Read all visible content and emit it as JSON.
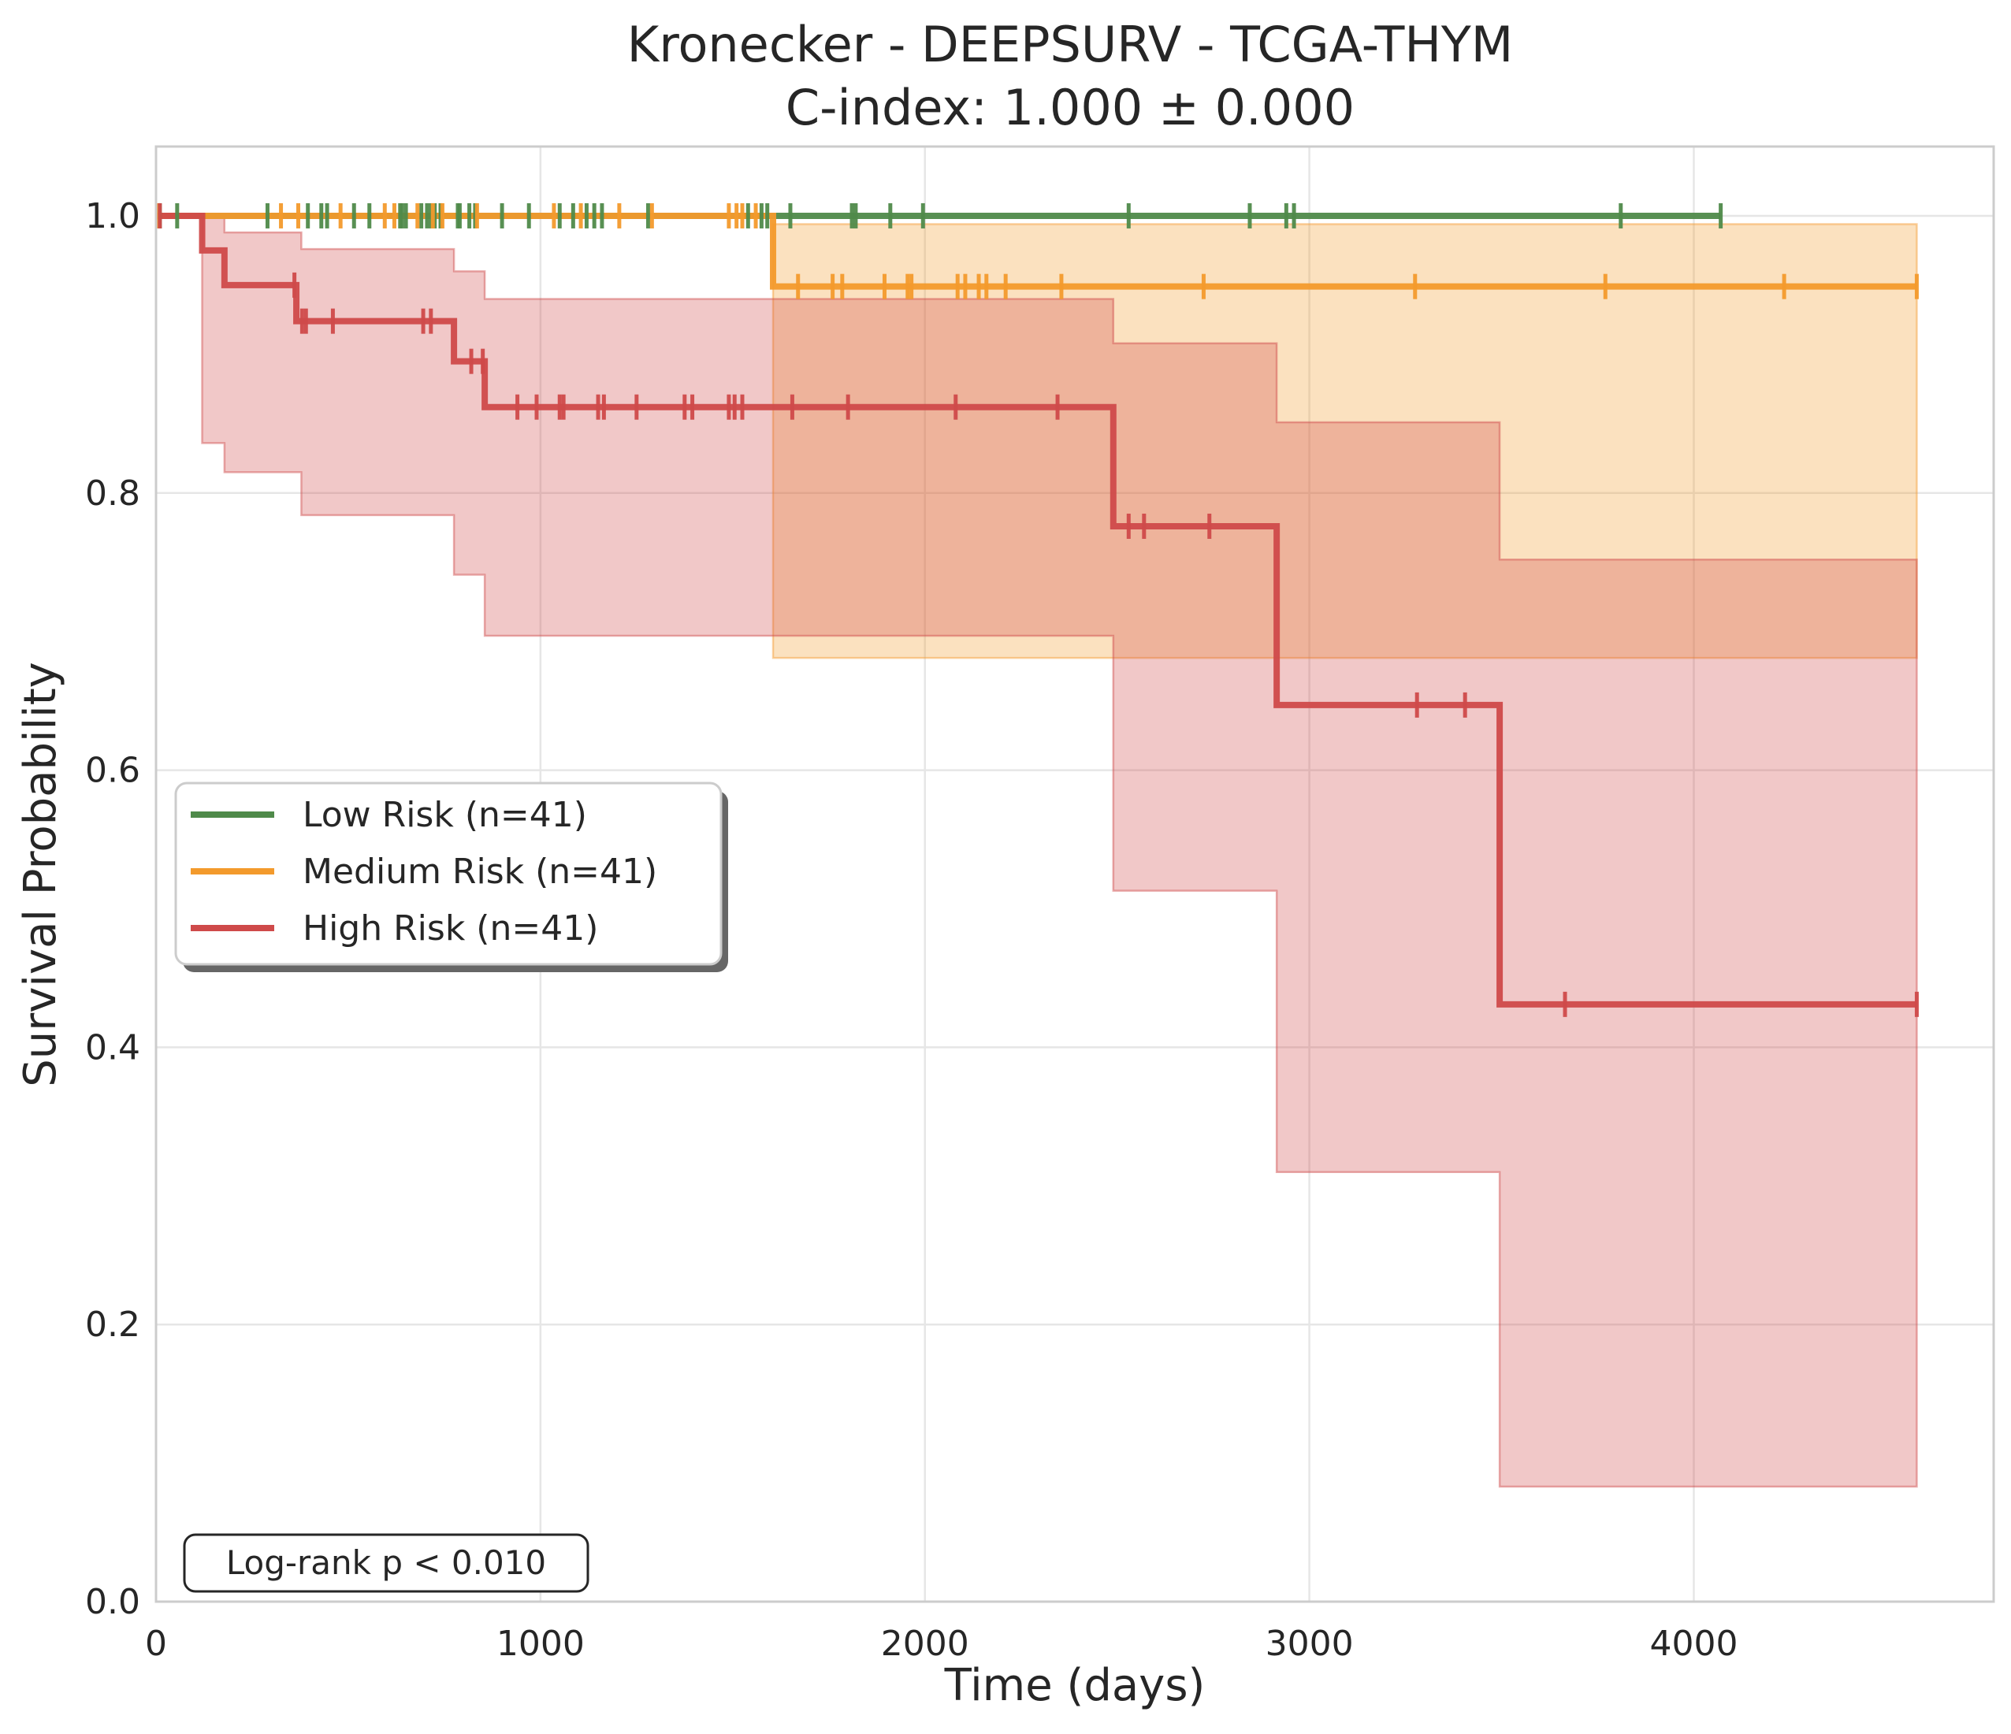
{
  "chart_data": {
    "type": "line",
    "title_line1": "Kronecker - DEEPSURV - TCGA-THYM",
    "title_line2": "C-index: 1.000 ± 0.000",
    "xlabel": "Time (days)",
    "ylabel": "Survival Probability",
    "xlim": [
      0,
      4780
    ],
    "ylim": [
      0,
      1.05
    ],
    "x_ticks": [
      0,
      1000,
      2000,
      3000,
      4000
    ],
    "x_tick_labels": [
      "0",
      "1000",
      "2000",
      "3000",
      "4000"
    ],
    "y_ticks": [
      0,
      0.2,
      0.4,
      0.6,
      0.8,
      1.0
    ],
    "y_tick_labels": [
      "0.0",
      "0.2",
      "0.4",
      "0.6",
      "0.8",
      "1.0"
    ],
    "grid": true,
    "legend_position": "center-left",
    "annotation": "Log-rank p < 0.010",
    "series": [
      {
        "name": "Low Risk (n=41)",
        "color": "#4f8a4a",
        "steps": [
          [
            0,
            1.0
          ],
          [
            4070,
            1.0
          ]
        ],
        "ci": [],
        "censor_times": [
          10,
          55,
          290,
          395,
          430,
          445,
          515,
          555,
          635,
          640,
          650,
          690,
          705,
          715,
          725,
          740,
          785,
          790,
          815,
          830,
          900,
          970,
          1050,
          1085,
          1120,
          1140,
          1160,
          1280,
          1540,
          1575,
          1590,
          1650,
          1810,
          1820,
          1910,
          1995,
          2530,
          2845,
          2940,
          2960,
          3810,
          4070
        ]
      },
      {
        "name": "Medium Risk (n=41)",
        "color": "#f39a2c",
        "steps": [
          [
            0,
            1.0
          ],
          [
            1605,
            1.0
          ],
          [
            1605,
            0.949
          ],
          [
            4580,
            0.949
          ]
        ],
        "ci": [
          [
            1605,
            0.994,
            0.681
          ],
          [
            4580,
            0.994,
            0.681
          ]
        ],
        "censor_times": [
          5,
          325,
          370,
          480,
          595,
          620,
          680,
          720,
          745,
          835,
          1035,
          1105,
          1205,
          1290,
          1490,
          1510,
          1525,
          1560,
          1670,
          1760,
          1785,
          1895,
          1955,
          1965,
          2085,
          2105,
          2140,
          2160,
          2210,
          2355,
          2725,
          3275,
          3770,
          4235,
          4580
        ]
      },
      {
        "name": "High Risk (n=41)",
        "color": "#cf4a4a",
        "steps": [
          [
            0,
            1.0
          ],
          [
            120,
            1.0
          ],
          [
            120,
            0.975
          ],
          [
            178,
            0.975
          ],
          [
            178,
            0.95
          ],
          [
            365,
            0.95
          ],
          [
            365,
            0.924
          ],
          [
            775,
            0.924
          ],
          [
            775,
            0.895
          ],
          [
            855,
            0.895
          ],
          [
            855,
            0.862
          ],
          [
            2490,
            0.862
          ],
          [
            2490,
            0.776
          ],
          [
            2915,
            0.776
          ],
          [
            2915,
            0.647
          ],
          [
            3495,
            0.647
          ],
          [
            3495,
            0.431
          ],
          [
            4580,
            0.431
          ]
        ],
        "ci": [
          [
            0,
            1.0,
            1.0
          ],
          [
            120,
            1.0,
            0.836
          ],
          [
            178,
            0.988,
            0.815
          ],
          [
            378,
            0.976,
            0.784
          ],
          [
            775,
            0.96,
            0.741
          ],
          [
            855,
            0.94,
            0.697
          ],
          [
            2490,
            0.908,
            0.513
          ],
          [
            2915,
            0.851,
            0.31
          ],
          [
            3495,
            0.752,
            0.083
          ],
          [
            4580,
            0.752,
            0.083
          ]
        ],
        "censor_times": [
          10,
          360,
          380,
          390,
          460,
          695,
          715,
          820,
          850,
          940,
          990,
          1050,
          1060,
          1150,
          1165,
          1250,
          1375,
          1395,
          1490,
          1505,
          1525,
          1655,
          1800,
          2080,
          2345,
          2530,
          2570,
          2740,
          3280,
          3405,
          3665,
          4580
        ]
      }
    ]
  }
}
